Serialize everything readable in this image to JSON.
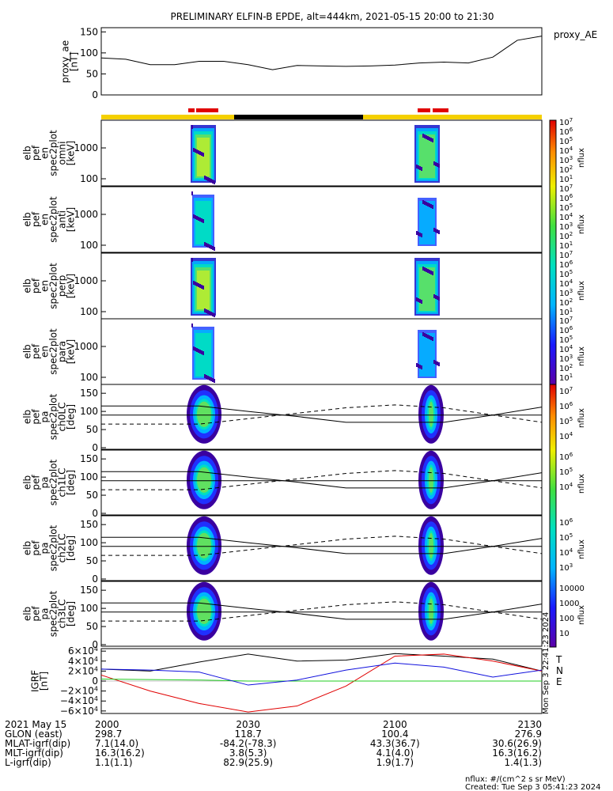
{
  "title": "PRELIMINARY ELFIN-B EPDE, alt=444km, 2021-05-15 20:00 to 21:30",
  "colors": {
    "orbit_day": "#f5d000",
    "orbit_night": "#000000",
    "science_zone": "#e00000",
    "b_total": "#000000",
    "b_north": "#e00000",
    "b_east": "#22cc22",
    "b_down": "#1010dd"
  },
  "x_ticks": [
    "2000",
    "2030",
    "2100",
    "2130"
  ],
  "ae_panel": {
    "ylabel_lines": [
      "proxy_ae",
      "[nT]"
    ],
    "yticks": [
      "150",
      "100",
      "50",
      "0"
    ],
    "legend": "proxy_AE"
  },
  "spec_panels": [
    {
      "ylabel_lines": [
        "elb",
        "pef",
        "en",
        "spec2plot",
        "omni",
        "[keV]"
      ],
      "yticks": [
        "1000",
        "100"
      ],
      "cb_label": "nflux",
      "cb_ticks": [
        "10<tspan baseline-shift='super' font-size='8'>7</tspan>",
        "10<tspan baseline-shift='super' font-size='8'>6</tspan>",
        "10<tspan baseline-shift='super' font-size='8'>5</tspan>",
        "10<tspan baseline-shift='super' font-size='8'>4</tspan>",
        "10<tspan baseline-shift='super' font-size='8'>3</tspan>",
        "10<tspan baseline-shift='super' font-size='8'>2</tspan>",
        "10<tspan baseline-shift='super' font-size='8'>1</tspan>"
      ]
    },
    {
      "ylabel_lines": [
        "elb",
        "pef",
        "en",
        "spec2plot",
        "anti",
        "[keV]"
      ],
      "yticks": [
        "1000",
        "100"
      ],
      "cb_label": "nflux",
      "cb_ticks": []
    },
    {
      "ylabel_lines": [
        "elb",
        "pef",
        "en",
        "spec2plot",
        "perp",
        "[keV]"
      ],
      "yticks": [
        "1000",
        "100"
      ],
      "cb_label": "nflux",
      "cb_ticks": []
    },
    {
      "ylabel_lines": [
        "elb",
        "pef",
        "en",
        "spec2plot",
        "para",
        "[keV]"
      ],
      "yticks": [
        "1000",
        "100"
      ],
      "cb_label": "nflux",
      "cb_ticks": []
    }
  ],
  "pa_panels": [
    {
      "ylabel_lines": [
        "elb",
        "pef",
        "pa",
        "spec2plot",
        "ch0LC",
        "[deg]"
      ],
      "yticks": [
        "150",
        "100",
        "50",
        "0"
      ],
      "cb_label": "nflux",
      "cb_ticks_text": [
        "10",
        "10",
        "10",
        "10"
      ],
      "cb_ticks_exp": [
        "7",
        "6",
        "5",
        "4"
      ]
    },
    {
      "ylabel_lines": [
        "elb",
        "pef",
        "pa",
        "spec2plot",
        "ch1LC",
        "[deg]"
      ],
      "yticks": [
        "150",
        "100",
        "50",
        "0"
      ],
      "cb_label": "nflux",
      "cb_ticks_text": [
        "10",
        "10",
        "10"
      ],
      "cb_ticks_exp": [
        "6",
        "5",
        "4"
      ]
    },
    {
      "ylabel_lines": [
        "elb",
        "pef",
        "pa",
        "spec2plot",
        "ch2LC",
        "[deg]"
      ],
      "yticks": [
        "150",
        "100",
        "50",
        "0"
      ],
      "cb_label": "nflux",
      "cb_ticks_text": [
        "10",
        "10",
        "10",
        "10"
      ],
      "cb_ticks_exp": [
        "6",
        "5",
        "4",
        "3"
      ]
    },
    {
      "ylabel_lines": [
        "elb",
        "pef",
        "pa",
        "spec2plot",
        "ch3LC",
        "[deg]"
      ],
      "yticks": [
        "150",
        "100",
        "50",
        "0"
      ],
      "cb_label": "nflux",
      "cb_ticks_text": [
        "10000",
        "1000",
        "100",
        "10"
      ],
      "cb_ticks_exp": [
        "",
        "",
        "",
        ""
      ]
    }
  ],
  "b_panel": {
    "ylabel_lines": [
      "IGRF",
      "[nT]"
    ],
    "yticks_mant": [
      "6×10",
      "4×10",
      "2×10",
      "0",
      "−2×10",
      "−4×10",
      "−6×10"
    ],
    "ytick_exp": "4",
    "legend": [
      "T",
      "N",
      "E"
    ],
    "side_note": "Mon Sep  3 22:41:23 2024"
  },
  "footer": {
    "rows": [
      {
        "label": "2021 May 15",
        "values": [
          "2000",
          "2030",
          "2100",
          "2130"
        ]
      },
      {
        "label": "GLON (east)",
        "values": [
          "298.7",
          "118.7",
          "100.4",
          "276.9"
        ]
      },
      {
        "label": "MLAT-igrf(dip)",
        "values": [
          "7.1(14.0)",
          "-84.2(-78.3)",
          "43.3(36.7)",
          "30.6(26.9)"
        ]
      },
      {
        "label": "MLT-igrf(dip)",
        "values": [
          "16.3(16.2)",
          "3.8(5.3)",
          "4.1(4.0)",
          "16.3(16.2)"
        ]
      },
      {
        "label": "L-igrf(dip)",
        "values": [
          "1.1(1.1)",
          "82.9(25.9)",
          "1.9(1.7)",
          "1.4(1.3)"
        ]
      }
    ],
    "units_note": "nflux: #/(cm^2 s sr MeV)",
    "created": "Created: Tue Sep  3 05:41:23 2024"
  },
  "chart_data": {
    "type": "line",
    "x_range": [
      "2021-05-15 20:00",
      "2021-05-15 21:30"
    ],
    "proxy_ae": {
      "name": "proxy_AE",
      "t_min": [
        0,
        5,
        10,
        15,
        20,
        25,
        30,
        35,
        40,
        45,
        50,
        55,
        60,
        65,
        70,
        75,
        80,
        85,
        90
      ],
      "values": [
        88,
        85,
        72,
        72,
        80,
        80,
        72,
        60,
        70,
        69,
        68,
        69,
        71,
        76,
        78,
        76,
        90,
        130,
        140
      ],
      "ylim": [
        0,
        160
      ]
    },
    "pa_lines_deg": {
      "t_min": [
        0,
        10,
        20,
        30,
        40,
        50,
        60,
        70,
        80,
        90
      ],
      "solid_upper": [
        115,
        115,
        115,
        100,
        86,
        70,
        70,
        70,
        90,
        112
      ],
      "solid_lower": [
        90,
        90,
        90,
        90,
        90,
        90,
        90,
        90,
        90,
        90
      ],
      "dashed": [
        65,
        65,
        65,
        80,
        95,
        110,
        118,
        110,
        90,
        70
      ]
    },
    "igrf_nT": {
      "t_min": [
        0,
        10,
        20,
        30,
        40,
        50,
        60,
        70,
        80,
        90
      ],
      "T": [
        24000,
        20000,
        38000,
        54000,
        40000,
        42000,
        55000,
        50000,
        44000,
        20000
      ],
      "N": [
        12000,
        -20000,
        -45000,
        -62000,
        -50000,
        -10000,
        50000,
        54000,
        40000,
        20000
      ],
      "E": [
        4000,
        3000,
        2000,
        0,
        0,
        0,
        0,
        0,
        0,
        0
      ],
      "D": [
        24000,
        22000,
        18000,
        -8000,
        2000,
        22000,
        36000,
        28000,
        8000,
        22000
      ],
      "ylim": [
        -65000,
        65000
      ]
    }
  }
}
